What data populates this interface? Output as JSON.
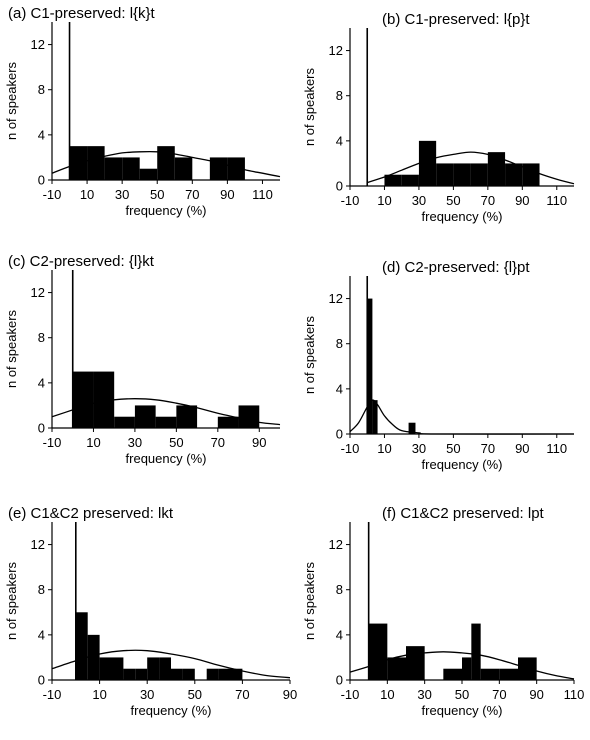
{
  "chart_data": [
    {
      "type": "bar",
      "title": "(a) C1-preserved: l{k}t",
      "xlabel": "frequency (%)",
      "ylabel": "n of speakers",
      "x_ticks": [
        -10,
        10,
        30,
        50,
        70,
        90,
        110
      ],
      "y_ticks": [
        0,
        4,
        8,
        12
      ],
      "xlim": [
        -10,
        120
      ],
      "ylim": [
        0,
        14
      ],
      "bars": [
        {
          "x0": 0,
          "x1": 10,
          "value": 3
        },
        {
          "x0": 10,
          "x1": 20,
          "value": 3
        },
        {
          "x0": 20,
          "x1": 30,
          "value": 2
        },
        {
          "x0": 30,
          "x1": 40,
          "value": 2
        },
        {
          "x0": 40,
          "x1": 50,
          "value": 1
        },
        {
          "x0": 50,
          "x1": 60,
          "value": 3
        },
        {
          "x0": 60,
          "x1": 70,
          "value": 2
        },
        {
          "x0": 70,
          "x1": 80,
          "value": 0
        },
        {
          "x0": 80,
          "x1": 90,
          "value": 2
        },
        {
          "x0": 90,
          "x1": 100,
          "value": 2
        }
      ],
      "curve": [
        [
          -10,
          0.6
        ],
        [
          0,
          1.2
        ],
        [
          10,
          1.7
        ],
        [
          20,
          2.1
        ],
        [
          30,
          2.4
        ],
        [
          40,
          2.5
        ],
        [
          50,
          2.5
        ],
        [
          60,
          2.3
        ],
        [
          70,
          2.0
        ],
        [
          80,
          1.7
        ],
        [
          90,
          1.3
        ],
        [
          100,
          0.9
        ],
        [
          110,
          0.6
        ],
        [
          120,
          0.3
        ]
      ],
      "vline_x": 0,
      "grid": false
    },
    {
      "type": "bar",
      "title": "(b) C1-preserved: l{p}t",
      "xlabel": "frequency (%)",
      "ylabel": "n of speakers",
      "x_ticks": [
        -10,
        10,
        30,
        50,
        70,
        90,
        110
      ],
      "y_ticks": [
        0,
        4,
        8,
        12
      ],
      "xlim": [
        -10,
        120
      ],
      "ylim": [
        0,
        14
      ],
      "bars": [
        {
          "x0": 10,
          "x1": 20,
          "value": 1
        },
        {
          "x0": 20,
          "x1": 30,
          "value": 1
        },
        {
          "x0": 30,
          "x1": 40,
          "value": 4
        },
        {
          "x0": 40,
          "x1": 50,
          "value": 2
        },
        {
          "x0": 50,
          "x1": 60,
          "value": 2
        },
        {
          "x0": 60,
          "x1": 70,
          "value": 2
        },
        {
          "x0": 70,
          "x1": 80,
          "value": 3
        },
        {
          "x0": 80,
          "x1": 90,
          "value": 2
        },
        {
          "x0": 90,
          "x1": 100,
          "value": 2
        }
      ],
      "curve": [
        [
          0,
          0.3
        ],
        [
          10,
          0.8
        ],
        [
          20,
          1.4
        ],
        [
          30,
          2.0
        ],
        [
          40,
          2.5
        ],
        [
          50,
          2.8
        ],
        [
          60,
          3.0
        ],
        [
          70,
          2.8
        ],
        [
          80,
          2.3
        ],
        [
          90,
          1.7
        ],
        [
          100,
          1.1
        ],
        [
          110,
          0.6
        ],
        [
          120,
          0.2
        ]
      ],
      "vline_x": 0,
      "grid": false
    },
    {
      "type": "bar",
      "title": "(c) C2-preserved: {l}kt",
      "xlabel": "frequency (%)",
      "ylabel": "n of speakers",
      "x_ticks": [
        -10,
        10,
        30,
        50,
        70,
        90
      ],
      "y_ticks": [
        0,
        4,
        8,
        12
      ],
      "xlim": [
        -10,
        100
      ],
      "ylim": [
        0,
        14
      ],
      "bars": [
        {
          "x0": 0,
          "x1": 10,
          "value": 5
        },
        {
          "x0": 10,
          "x1": 20,
          "value": 5
        },
        {
          "x0": 20,
          "x1": 30,
          "value": 1
        },
        {
          "x0": 30,
          "x1": 40,
          "value": 2
        },
        {
          "x0": 40,
          "x1": 50,
          "value": 1
        },
        {
          "x0": 50,
          "x1": 60,
          "value": 2
        },
        {
          "x0": 60,
          "x1": 70,
          "value": 0
        },
        {
          "x0": 70,
          "x1": 80,
          "value": 1
        },
        {
          "x0": 80,
          "x1": 90,
          "value": 2
        }
      ],
      "curve": [
        [
          -10,
          1.0
        ],
        [
          0,
          1.6
        ],
        [
          10,
          2.2
        ],
        [
          20,
          2.5
        ],
        [
          30,
          2.6
        ],
        [
          40,
          2.5
        ],
        [
          50,
          2.2
        ],
        [
          60,
          1.8
        ],
        [
          70,
          1.3
        ],
        [
          80,
          0.9
        ],
        [
          90,
          0.5
        ],
        [
          100,
          0.3
        ]
      ],
      "vline_x": 0,
      "grid": false
    },
    {
      "type": "bar",
      "title": "(d) C2-preserved: {l}pt",
      "xlabel": "frequency (%)",
      "ylabel": "n of speakers",
      "x_ticks": [
        -10,
        10,
        30,
        50,
        70,
        90,
        110
      ],
      "y_ticks": [
        0,
        4,
        8,
        12
      ],
      "xlim": [
        -10,
        120
      ],
      "ylim": [
        0,
        14
      ],
      "bars": [
        {
          "x0": 0,
          "x1": 3,
          "value": 12
        },
        {
          "x0": 3,
          "x1": 6,
          "value": 3
        },
        {
          "x0": 24,
          "x1": 28,
          "value": 1
        }
      ],
      "curve": [
        [
          -10,
          0.2
        ],
        [
          -5,
          1.0
        ],
        [
          0,
          2.4
        ],
        [
          3,
          3.0
        ],
        [
          6,
          2.6
        ],
        [
          10,
          1.6
        ],
        [
          15,
          0.8
        ],
        [
          20,
          0.3
        ],
        [
          30,
          0.1
        ],
        [
          40,
          0.0
        ],
        [
          120,
          0.0
        ]
      ],
      "vline_x": 0,
      "grid": false
    },
    {
      "type": "bar",
      "title": "(e) C1&C2 preserved: lkt",
      "xlabel": "frequency (%)",
      "ylabel": "n of speakers",
      "x_ticks": [
        -10,
        10,
        30,
        50,
        70,
        90
      ],
      "y_ticks": [
        0,
        4,
        8,
        12
      ],
      "xlim": [
        -10,
        90
      ],
      "ylim": [
        0,
        14
      ],
      "bars": [
        {
          "x0": 0,
          "x1": 5,
          "value": 6
        },
        {
          "x0": 5,
          "x1": 10,
          "value": 4
        },
        {
          "x0": 10,
          "x1": 15,
          "value": 2
        },
        {
          "x0": 15,
          "x1": 20,
          "value": 2
        },
        {
          "x0": 20,
          "x1": 25,
          "value": 1
        },
        {
          "x0": 25,
          "x1": 30,
          "value": 1
        },
        {
          "x0": 30,
          "x1": 35,
          "value": 2
        },
        {
          "x0": 35,
          "x1": 40,
          "value": 2
        },
        {
          "x0": 40,
          "x1": 45,
          "value": 1
        },
        {
          "x0": 45,
          "x1": 50,
          "value": 1
        },
        {
          "x0": 50,
          "x1": 55,
          "value": 0
        },
        {
          "x0": 55,
          "x1": 60,
          "value": 1
        },
        {
          "x0": 60,
          "x1": 65,
          "value": 1
        },
        {
          "x0": 65,
          "x1": 70,
          "value": 1
        }
      ],
      "curve": [
        [
          -10,
          1.0
        ],
        [
          0,
          1.7
        ],
        [
          10,
          2.3
        ],
        [
          20,
          2.6
        ],
        [
          30,
          2.6
        ],
        [
          40,
          2.3
        ],
        [
          50,
          1.9
        ],
        [
          60,
          1.3
        ],
        [
          70,
          0.8
        ],
        [
          80,
          0.4
        ],
        [
          90,
          0.2
        ]
      ],
      "vline_x": 0,
      "grid": false
    },
    {
      "type": "bar",
      "title": "(f) C1&C2 preserved: lpt",
      "xlabel": "frequency (%)",
      "ylabel": "n of speakers",
      "x_ticks": [
        -10,
        10,
        30,
        50,
        70,
        90,
        110
      ],
      "y_ticks": [
        0,
        4,
        8,
        12
      ],
      "xlim": [
        -10,
        110
      ],
      "ylim": [
        0,
        14
      ],
      "bars": [
        {
          "x0": 0,
          "x1": 10,
          "value": 5
        },
        {
          "x0": 10,
          "x1": 20,
          "value": 2
        },
        {
          "x0": 20,
          "x1": 30,
          "value": 3
        },
        {
          "x0": 30,
          "x1": 40,
          "value": 0
        },
        {
          "x0": 40,
          "x1": 50,
          "value": 1
        },
        {
          "x0": 50,
          "x1": 55,
          "value": 2
        },
        {
          "x0": 55,
          "x1": 60,
          "value": 5
        },
        {
          "x0": 60,
          "x1": 70,
          "value": 1
        },
        {
          "x0": 70,
          "x1": 80,
          "value": 1
        },
        {
          "x0": 80,
          "x1": 90,
          "value": 2
        }
      ],
      "curve": [
        [
          -10,
          0.7
        ],
        [
          0,
          1.2
        ],
        [
          10,
          1.8
        ],
        [
          20,
          2.2
        ],
        [
          30,
          2.4
        ],
        [
          40,
          2.5
        ],
        [
          50,
          2.4
        ],
        [
          60,
          2.2
        ],
        [
          70,
          1.8
        ],
        [
          80,
          1.3
        ],
        [
          90,
          0.8
        ],
        [
          100,
          0.4
        ],
        [
          110,
          0.1
        ]
      ],
      "vline_x": 0,
      "grid": false
    }
  ]
}
